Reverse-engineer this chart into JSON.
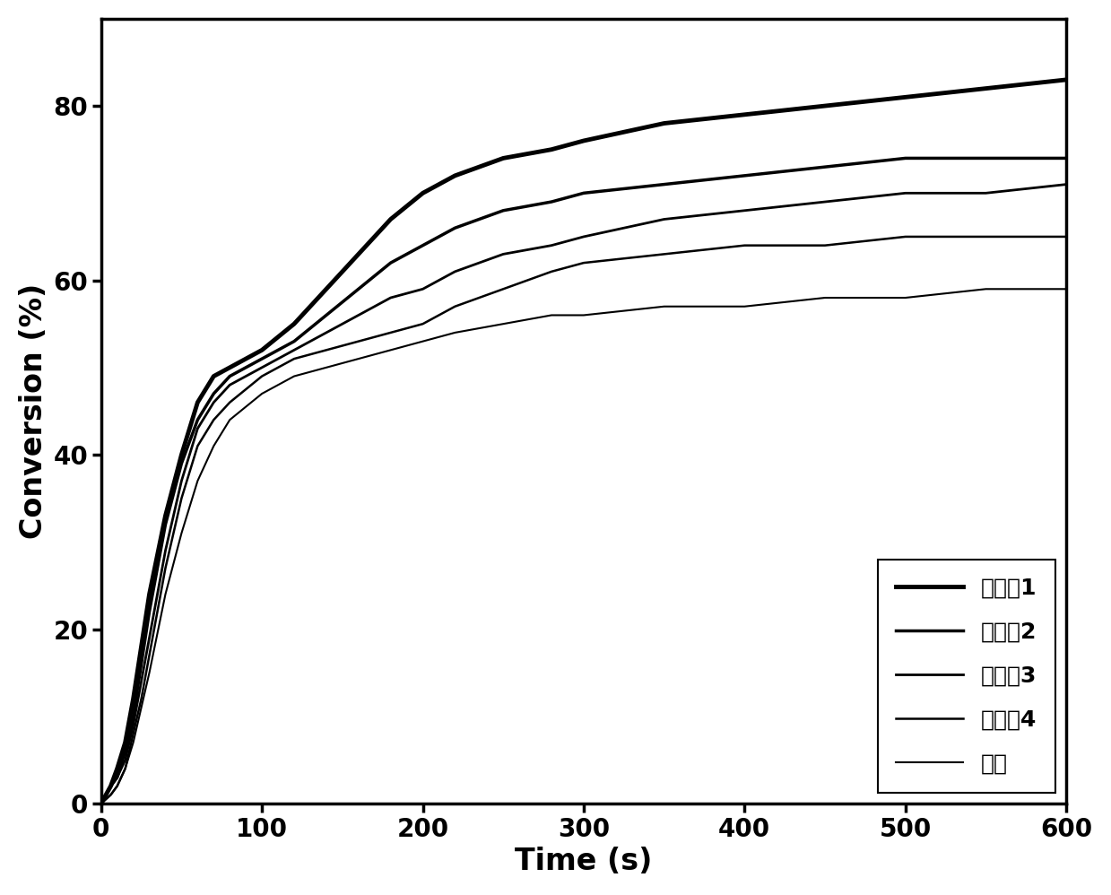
{
  "title": "",
  "xlabel": "Time (s)",
  "ylabel": "Conversion (%)",
  "xlim": [
    0,
    600
  ],
  "ylim": [
    0,
    90
  ],
  "xticks": [
    0,
    100,
    200,
    300,
    400,
    500,
    600
  ],
  "yticks": [
    0,
    20,
    40,
    60,
    80
  ],
  "background_color": "#ffffff",
  "legend_entries": [
    "化合利1",
    "化合利2",
    "化合利3",
    "化合利4",
    "参比"
  ],
  "line_widths": [
    3.5,
    2.5,
    2.0,
    1.8,
    1.5
  ],
  "line_colors": [
    "#000000",
    "#000000",
    "#000000",
    "#000000",
    "#000000"
  ],
  "line_styles": [
    "-",
    "-",
    "-",
    "-",
    "-"
  ],
  "font_size_label": 24,
  "font_size_tick": 20,
  "font_size_legend": 18,
  "series": {
    "compound1": {
      "t": [
        0,
        3,
        6,
        10,
        15,
        20,
        25,
        30,
        40,
        50,
        60,
        70,
        80,
        100,
        120,
        140,
        160,
        180,
        200,
        220,
        250,
        280,
        300,
        350,
        400,
        450,
        500,
        550,
        600
      ],
      "y": [
        0,
        1,
        2,
        4,
        7,
        12,
        18,
        24,
        33,
        40,
        46,
        49,
        50,
        52,
        55,
        59,
        63,
        67,
        70,
        72,
        74,
        75,
        76,
        78,
        79,
        80,
        81,
        82,
        83
      ]
    },
    "compound2": {
      "t": [
        0,
        3,
        6,
        10,
        15,
        20,
        25,
        30,
        40,
        50,
        60,
        70,
        80,
        100,
        120,
        140,
        160,
        180,
        200,
        220,
        250,
        280,
        300,
        350,
        400,
        450,
        500,
        550,
        600
      ],
      "y": [
        0,
        1,
        2,
        3,
        6,
        10,
        16,
        22,
        32,
        39,
        44,
        47,
        49,
        51,
        53,
        56,
        59,
        62,
        64,
        66,
        68,
        69,
        70,
        71,
        72,
        73,
        74,
        74,
        74
      ]
    },
    "compound3": {
      "t": [
        0,
        3,
        6,
        10,
        15,
        20,
        25,
        30,
        40,
        50,
        60,
        70,
        80,
        100,
        120,
        140,
        160,
        180,
        200,
        220,
        250,
        280,
        300,
        350,
        400,
        450,
        500,
        550,
        600
      ],
      "y": [
        0,
        1,
        2,
        3,
        5,
        9,
        14,
        19,
        29,
        37,
        43,
        46,
        48,
        50,
        52,
        54,
        56,
        58,
        59,
        61,
        63,
        64,
        65,
        67,
        68,
        69,
        70,
        70,
        71
      ]
    },
    "compound4": {
      "t": [
        0,
        3,
        6,
        10,
        15,
        20,
        25,
        30,
        40,
        50,
        60,
        70,
        80,
        100,
        120,
        140,
        160,
        180,
        200,
        220,
        250,
        280,
        300,
        350,
        400,
        450,
        500,
        550,
        600
      ],
      "y": [
        0,
        0.5,
        1,
        2,
        4,
        8,
        12,
        17,
        27,
        35,
        41,
        44,
        46,
        49,
        51,
        52,
        53,
        54,
        55,
        57,
        59,
        61,
        62,
        63,
        64,
        64,
        65,
        65,
        65
      ]
    },
    "reference": {
      "t": [
        0,
        3,
        6,
        10,
        15,
        20,
        25,
        30,
        40,
        50,
        60,
        70,
        80,
        100,
        120,
        140,
        160,
        180,
        200,
        220,
        250,
        280,
        300,
        350,
        400,
        450,
        500,
        550,
        600
      ],
      "y": [
        0,
        0.5,
        1,
        2,
        4,
        7,
        11,
        15,
        24,
        31,
        37,
        41,
        44,
        47,
        49,
        50,
        51,
        52,
        53,
        54,
        55,
        56,
        56,
        57,
        57,
        58,
        58,
        59,
        59
      ]
    }
  }
}
